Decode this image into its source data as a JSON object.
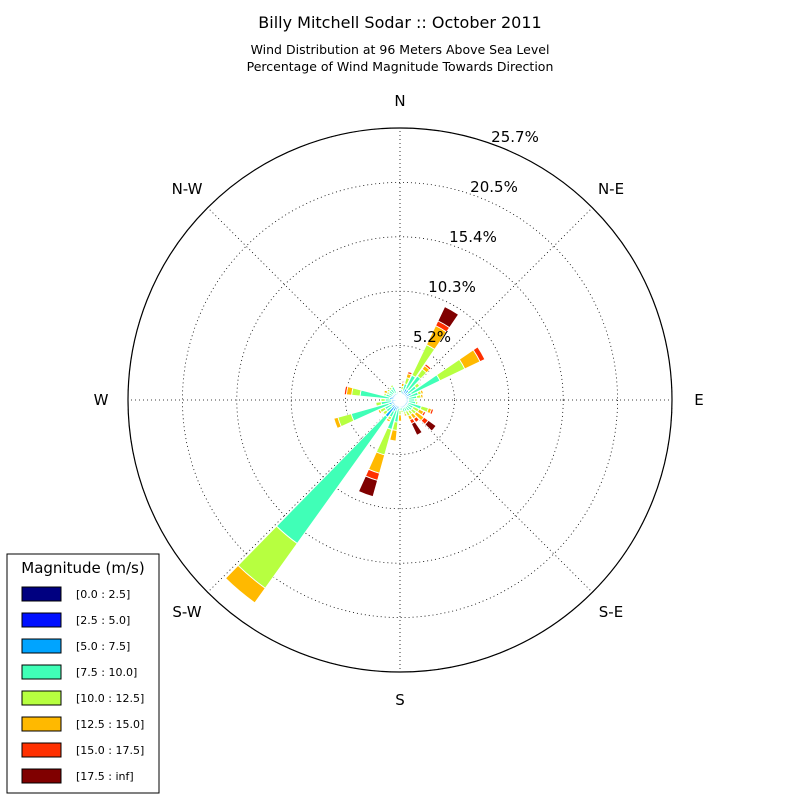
{
  "chart_data": {
    "type": "windrose",
    "title": "Billy Mitchell Sodar :: October 2011",
    "subtitle_lines": [
      "Wind Distribution at 96 Meters Above Sea Level",
      "Percentage of Wind Magnitude Towards Direction"
    ],
    "direction_labels": [
      "N",
      "N-E",
      "E",
      "S-E",
      "S",
      "S-W",
      "W",
      "N-W"
    ],
    "radial_ticks": [
      "5.2%",
      "10.3%",
      "15.4%",
      "20.5%",
      "25.7%"
    ],
    "radial_tick_values": [
      5.15,
      10.29,
      15.44,
      20.58,
      25.73
    ],
    "radial_max": 25.73,
    "sector_count": 36,
    "sector_width_deg": 10,
    "grid": true,
    "legend": {
      "title": "Magnitude (m/s)",
      "placement": "bottom-left",
      "entries": [
        "[0.0 : 2.5]",
        "[2.5 : 5.0]",
        "[5.0 : 7.5]",
        "[7.5 : 10.0]",
        "[10.0 : 12.5]",
        "[12.5 : 15.0]",
        "[15.0 : 17.5]",
        "[17.5 : inf]"
      ],
      "colors": [
        "#000080",
        "#0010ff",
        "#00a4ff",
        "#40ffb7",
        "#b7ff40",
        "#ffb900",
        "#ff3000",
        "#800000"
      ]
    },
    "sectors": [
      {
        "direction_deg": 0,
        "cumulative_pct": [
          0.1,
          0.3,
          0.5
        ]
      },
      {
        "direction_deg": 10,
        "cumulative_pct": [
          0.1,
          0.3,
          0.6,
          1.0,
          1.3,
          1.6,
          1.7,
          1.8
        ]
      },
      {
        "direction_deg": 20,
        "cumulative_pct": [
          0.1,
          0.4,
          0.9,
          1.6,
          2.2,
          2.6,
          2.8
        ]
      },
      {
        "direction_deg": 30,
        "cumulative_pct": [
          0.1,
          0.4,
          1.2,
          2.6,
          5.8,
          7.8,
          8.3,
          9.8
        ]
      },
      {
        "direction_deg": 40,
        "cumulative_pct": [
          0.1,
          0.4,
          1.2,
          2.8,
          3.6,
          4.0,
          4.2
        ]
      },
      {
        "direction_deg": 50,
        "cumulative_pct": [
          0.1,
          0.3,
          0.9,
          1.9,
          2.3,
          2.4,
          2.5
        ]
      },
      {
        "direction_deg": 60,
        "cumulative_pct": [
          0.1,
          0.3,
          1.2,
          4.2,
          6.8,
          8.4,
          8.9
        ]
      },
      {
        "direction_deg": 70,
        "cumulative_pct": [
          0.1,
          0.3,
          0.9,
          1.8,
          2.1,
          2.3
        ]
      },
      {
        "direction_deg": 80,
        "cumulative_pct": [
          0.1,
          0.3,
          0.8,
          1.6,
          2.0,
          2.2
        ]
      },
      {
        "direction_deg": 90,
        "cumulative_pct": [
          0.1,
          0.3,
          0.8,
          1.4,
          1.6
        ]
      },
      {
        "direction_deg": 100,
        "cumulative_pct": [
          0.1,
          0.3,
          0.8,
          1.5,
          1.7
        ]
      },
      {
        "direction_deg": 110,
        "cumulative_pct": [
          0.1,
          0.3,
          0.8,
          2.1,
          2.8,
          3.1,
          3.3
        ]
      },
      {
        "direction_deg": 120,
        "cumulative_pct": [
          0.1,
          0.3,
          0.8,
          1.4,
          2.0,
          2.5,
          2.7
        ]
      },
      {
        "direction_deg": 130,
        "cumulative_pct": [
          0.1,
          0.3,
          0.8,
          1.4,
          1.9,
          2.8,
          3.3,
          4.2
        ]
      },
      {
        "direction_deg": 140,
        "cumulative_pct": [
          0.1,
          0.3,
          0.8,
          1.3,
          1.7,
          2.2,
          2.6
        ]
      },
      {
        "direction_deg": 150,
        "cumulative_pct": [
          0.1,
          0.3,
          0.8,
          1.2,
          1.7,
          2.1,
          2.5,
          3.7
        ]
      },
      {
        "direction_deg": 160,
        "cumulative_pct": [
          0.1,
          0.3,
          0.8,
          1.2,
          1.4,
          1.6
        ]
      },
      {
        "direction_deg": 170,
        "cumulative_pct": [
          0.1,
          0.3,
          0.7,
          1.0,
          1.2,
          1.3
        ]
      },
      {
        "direction_deg": 180,
        "cumulative_pct": [
          0.1,
          0.3,
          0.7,
          1.0,
          1.4,
          2.0
        ]
      },
      {
        "direction_deg": 190,
        "cumulative_pct": [
          0.1,
          0.3,
          0.8,
          2.1,
          2.9,
          3.9
        ]
      },
      {
        "direction_deg": 200,
        "cumulative_pct": [
          0.1,
          0.4,
          1.0,
          2.9,
          5.4,
          7.2,
          7.9,
          9.5
        ]
      },
      {
        "direction_deg": 210,
        "cumulative_pct": [
          0.1,
          0.4,
          1.2,
          1.8,
          2.1,
          2.3
        ]
      },
      {
        "direction_deg": 220,
        "cumulative_pct": [
          0.2,
          0.6,
          2.0,
          16.7,
          21.9,
          23.6
        ]
      },
      {
        "direction_deg": 230,
        "cumulative_pct": [
          0.1,
          0.4,
          1.0,
          1.6,
          2.0,
          2.1
        ]
      },
      {
        "direction_deg": 240,
        "cumulative_pct": [
          0.1,
          0.3,
          0.8,
          1.6,
          2.1,
          2.3
        ]
      },
      {
        "direction_deg": 250,
        "cumulative_pct": [
          0.1,
          0.4,
          1.1,
          4.8,
          6.1,
          6.5
        ]
      },
      {
        "direction_deg": 260,
        "cumulative_pct": [
          0.1,
          0.3,
          0.8,
          1.8,
          2.3
        ]
      },
      {
        "direction_deg": 270,
        "cumulative_pct": [
          0.1,
          0.3,
          0.8,
          1.4,
          1.8
        ]
      },
      {
        "direction_deg": 280,
        "cumulative_pct": [
          0.1,
          0.3,
          1.0,
          3.8,
          4.6,
          5.1,
          5.3
        ]
      },
      {
        "direction_deg": 290,
        "cumulative_pct": [
          0.1,
          0.3,
          0.9,
          1.4,
          1.6
        ]
      },
      {
        "direction_deg": 300,
        "cumulative_pct": [
          0.1,
          0.3,
          0.8,
          1.2,
          1.4,
          1.7
        ]
      },
      {
        "direction_deg": 310,
        "cumulative_pct": [
          0.1,
          0.3,
          0.8,
          1.3,
          1.5
        ]
      },
      {
        "direction_deg": 320,
        "cumulative_pct": [
          0.1,
          0.3,
          0.8,
          1.3,
          1.5
        ]
      },
      {
        "direction_deg": 330,
        "cumulative_pct": [
          0.1,
          0.3,
          0.7,
          1.4,
          1.6
        ]
      },
      {
        "direction_deg": 340,
        "cumulative_pct": [
          0.1,
          0.3,
          0.5,
          0.8
        ]
      },
      {
        "direction_deg": 350,
        "cumulative_pct": [
          0.1,
          0.2,
          0.4,
          0.6
        ]
      }
    ]
  }
}
